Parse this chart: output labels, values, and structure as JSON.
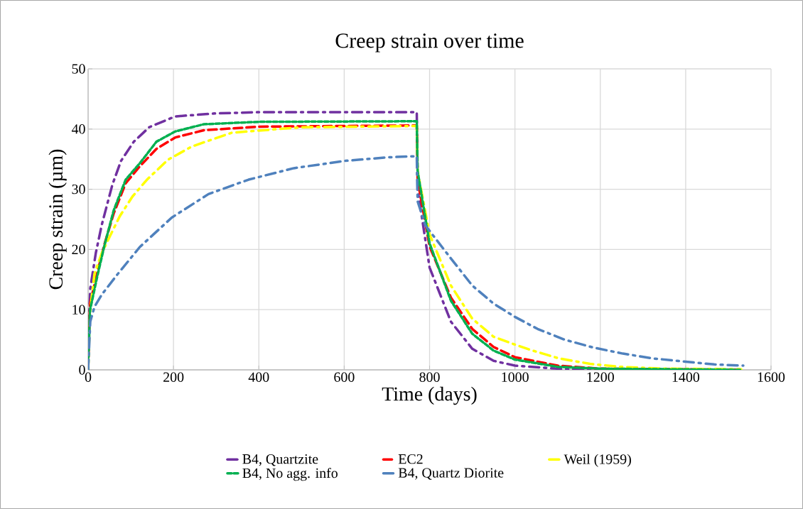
{
  "chart_data": {
    "type": "line",
    "title": "Creep strain over time",
    "xlabel": "Time (days)",
    "ylabel": "Creep strain (µm)",
    "xlim": [
      0,
      1600
    ],
    "ylim": [
      0,
      50
    ],
    "xticks": [
      0,
      200,
      400,
      600,
      800,
      1000,
      1200,
      1400,
      1600
    ],
    "yticks": [
      0,
      10,
      20,
      30,
      40,
      50
    ],
    "grid": true,
    "legend": "bottom",
    "marker": "none",
    "series": [
      {
        "name": "B4, Quartzite",
        "color": "#7030a0",
        "line_style": "dashdot",
        "x": [
          0,
          2,
          5,
          18,
          32,
          57,
          77,
          107,
          143,
          204,
          300,
          400,
          770,
          772,
          800,
          850,
          900,
          950,
          1000,
          1100,
          1200,
          1530
        ],
        "values": [
          0,
          8,
          13.5,
          19.4,
          24.1,
          30.8,
          34.7,
          37.9,
          40.3,
          42.1,
          42.6,
          42.8,
          42.8,
          30,
          17,
          8,
          3.5,
          1.5,
          0.7,
          0.2,
          0,
          0
        ]
      },
      {
        "name": "EC2",
        "color": "#ff0000",
        "line_style": "dashed",
        "x": [
          0,
          4.4,
          21,
          38,
          60,
          88,
          121,
          160,
          204,
          271,
          400,
          770,
          772,
          800,
          850,
          900,
          950,
          1000,
          1100,
          1200,
          1530
        ],
        "values": [
          0,
          11,
          16,
          20.8,
          26,
          31,
          33.8,
          36.7,
          38.6,
          39.8,
          40.4,
          40.6,
          31.5,
          20.5,
          12,
          6.8,
          3.8,
          2.1,
          0.7,
          0.2,
          0
        ]
      },
      {
        "name": "Weil (1959)",
        "color": "#ffff00",
        "line_style": "dashdot",
        "x": [
          0,
          5,
          15,
          32,
          49,
          74,
          104,
          138,
          187,
          243,
          337,
          500,
          770,
          772,
          800,
          850,
          900,
          950,
          1000,
          1037,
          1103,
          1176,
          1247,
          1350,
          1530
        ],
        "values": [
          0,
          10,
          16,
          19.4,
          21.9,
          25.5,
          28.8,
          31.6,
          34.9,
          37.1,
          39.4,
          40.3,
          40.5,
          33,
          22.5,
          14,
          8.5,
          5.5,
          4.2,
          3.3,
          1.9,
          1.0,
          0.5,
          0.2,
          0.1
        ]
      },
      {
        "name": "B4, No agg. info",
        "color": "#00b050",
        "line_style": "dotted",
        "x": [
          0,
          4.4,
          21,
          38,
          60,
          88,
          121,
          160,
          204,
          271,
          400,
          770,
          772,
          800,
          850,
          900,
          950,
          1000,
          1100,
          1200,
          1530
        ],
        "values": [
          0,
          9.9,
          15.4,
          20.6,
          26.5,
          31.6,
          34.3,
          37.9,
          39.6,
          40.8,
          41.2,
          41.3,
          33,
          21,
          11.5,
          6,
          3.2,
          1.7,
          0.5,
          0.2,
          0
        ]
      },
      {
        "name": "B4, Quartz Diorite",
        "color": "#4f81bd",
        "line_style": "dashdot",
        "x": [
          0,
          5,
          15,
          32,
          68,
          121,
          196,
          282,
          376,
          482,
          600,
          700,
          770,
          772,
          790,
          850,
          900,
          950,
          1000,
          1053,
          1117,
          1184,
          1253,
          1323,
          1395,
          1467,
          1535
        ],
        "values": [
          0,
          8,
          10.5,
          12.5,
          15.8,
          20.4,
          25.3,
          29.2,
          31.6,
          33.5,
          34.7,
          35.3,
          35.5,
          28,
          24,
          18.5,
          14,
          11,
          8.8,
          6.8,
          5.0,
          3.7,
          2.7,
          1.9,
          1.4,
          0.9,
          0.7
        ]
      }
    ]
  }
}
